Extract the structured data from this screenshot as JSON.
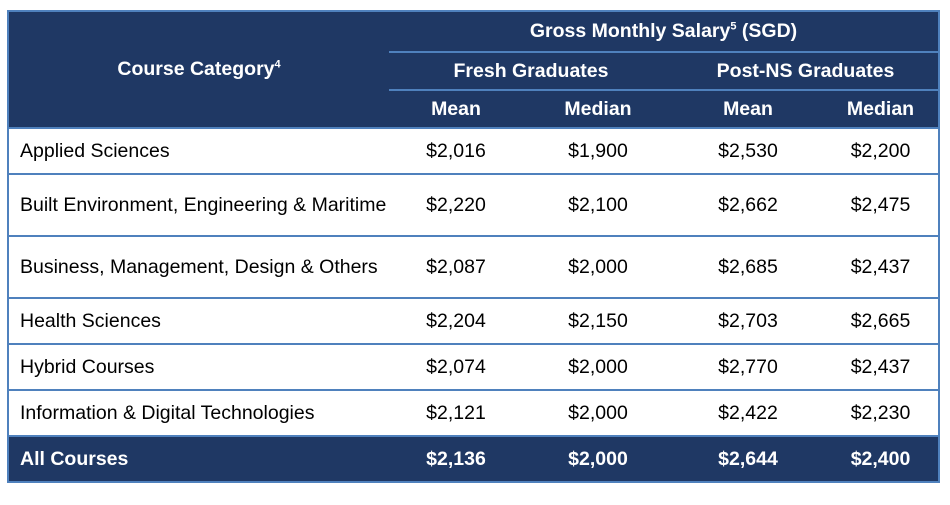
{
  "table": {
    "header": {
      "category": "Course Category",
      "category_sup": "4",
      "salary_title": "Gross Monthly Salary",
      "salary_sup": "5",
      "salary_unit": " (SGD)",
      "groups": [
        "Fresh Graduates",
        "Post-NS Graduates"
      ],
      "subcols": [
        "Mean",
        "Median",
        "Mean",
        "Median"
      ]
    },
    "rows": [
      {
        "name": "Applied Sciences",
        "values": [
          "$2,016",
          "$1,900",
          "$2,530",
          "$2,200"
        ]
      },
      {
        "name": "Built Environment, Engineering & Maritime",
        "values": [
          "$2,220",
          "$2,100",
          "$2,662",
          "$2,475"
        ]
      },
      {
        "name": "Business, Management, Design & Others",
        "values": [
          "$2,087",
          "$2,000",
          "$2,685",
          "$2,437"
        ]
      },
      {
        "name": "Health Sciences",
        "values": [
          "$2,204",
          "$2,150",
          "$2,703",
          "$2,665"
        ]
      },
      {
        "name": "Hybrid Courses",
        "values": [
          "$2,074",
          "$2,000",
          "$2,770",
          "$2,437"
        ]
      },
      {
        "name": "Information & Digital Technologies",
        "values": [
          "$2,121",
          "$2,000",
          "$2,422",
          "$2,230"
        ]
      }
    ],
    "total": {
      "name": "All Courses",
      "values": [
        "$2,136",
        "$2,000",
        "$2,644",
        "$2,400"
      ]
    }
  },
  "colors": {
    "header_bg": "#1f3864",
    "border": "#4f81bd",
    "header_text": "#ffffff"
  }
}
